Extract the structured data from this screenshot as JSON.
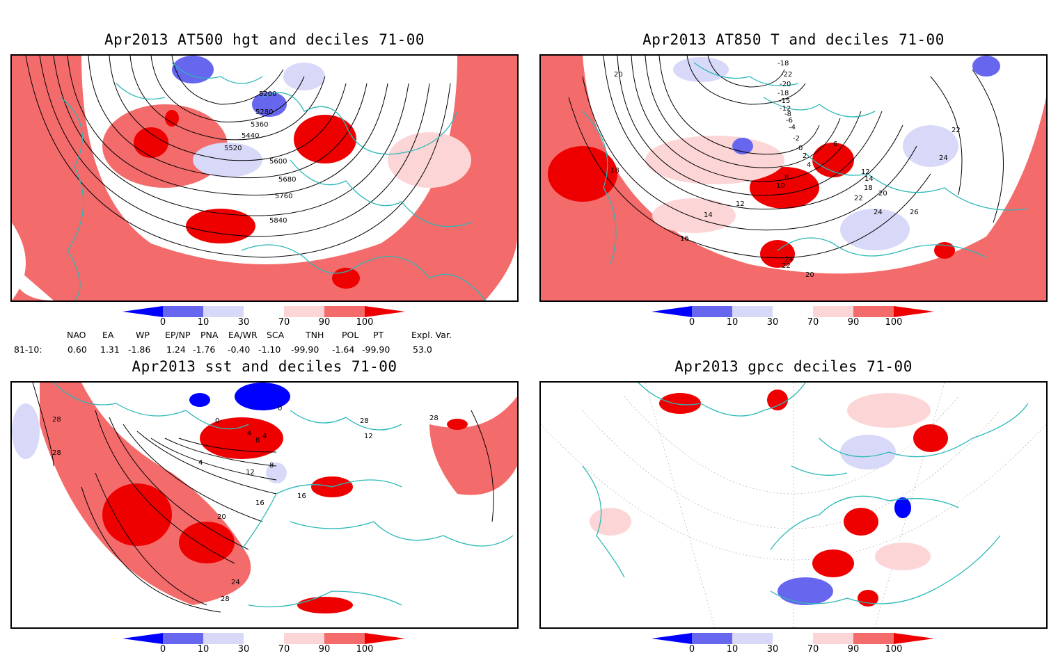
{
  "panels": [
    {
      "title": "Apr2013 AT500 hgt and deciles 71-00"
    },
    {
      "title": "Apr2013 AT850 T and deciles 71-00"
    },
    {
      "title": "Apr2013 sst and deciles 71-00"
    },
    {
      "title": "Apr2013 gpcc deciles 71-00"
    }
  ],
  "colorbar": {
    "labels": [
      "0",
      "10",
      "30",
      "70",
      "90",
      "100"
    ],
    "colors": [
      "#0000ff",
      "#6666ee",
      "#d8d8f8",
      "#ffffff",
      "#fcd6d6",
      "#f46b6b",
      "#ee0000"
    ]
  },
  "contour_labels": {
    "hgt": [
      "5200",
      "5280",
      "5360",
      "5440",
      "5520",
      "5600",
      "5680",
      "5760",
      "5840"
    ],
    "t850": [
      "-18",
      "-22",
      "-20",
      "-18",
      "-15",
      "-12",
      "-8",
      "-6",
      "-4",
      "-2",
      "0",
      "2",
      "4",
      "6",
      "8",
      "10",
      "12",
      "14",
      "16",
      "18",
      "20",
      "22",
      "24",
      "26",
      "16",
      "14",
      "12",
      "10",
      "18",
      "20",
      "22",
      "24",
      "26"
    ],
    "sst": [
      "28",
      "28",
      "0",
      "0",
      "4",
      "8",
      "4",
      "4",
      "8",
      "12",
      "16",
      "16",
      "20",
      "24",
      "28",
      "28",
      "12",
      "28"
    ]
  },
  "indices": {
    "header": [
      "NAO",
      "EA",
      "WP",
      "EP/NP",
      "PNA",
      "EA/WR",
      "SCA",
      "TNH",
      "POL",
      "PT",
      "Expl. Var."
    ],
    "row_label": "81-10:",
    "values": [
      "0.60",
      "1.31",
      "-1.86",
      "1.24",
      "-1.76",
      "-0.40",
      "-1.10",
      "-99.90",
      "-1.64",
      "-99.90",
      "53.0"
    ]
  }
}
